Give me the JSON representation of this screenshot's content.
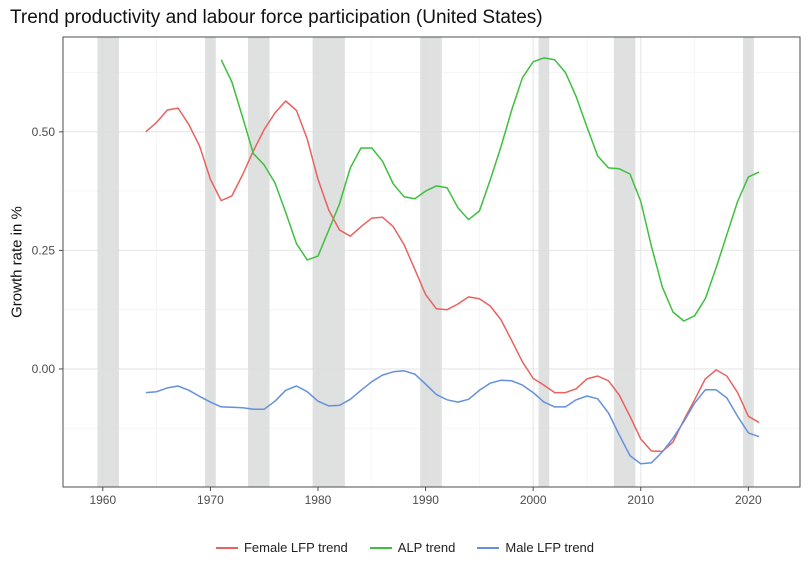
{
  "chart_data": {
    "type": "line",
    "title": "Trend productivity and labour force participation (United States)",
    "xlabel": "",
    "ylabel": "Growth rate in %",
    "xlim": [
      1956.3,
      2024.8
    ],
    "ylim": [
      -0.249,
      0.7
    ],
    "x_ticks": [
      1960,
      1970,
      1980,
      1990,
      2000,
      2010,
      2020
    ],
    "y_ticks": [
      0.0,
      0.25,
      0.5
    ],
    "y_tick_labels": [
      "0.00",
      "0.25",
      "0.50"
    ],
    "grid": true,
    "legend_position": "bottom",
    "shaded_periods": [
      [
        1959.5,
        1961.5
      ],
      [
        1969.5,
        1970.5
      ],
      [
        1973.5,
        1975.5
      ],
      [
        1979.5,
        1982.5
      ],
      [
        1989.5,
        1991.5
      ],
      [
        2000.5,
        2001.5
      ],
      [
        2007.5,
        2009.5
      ],
      [
        2019.5,
        2020.5
      ]
    ],
    "shade_color": "#dcdddd",
    "series": [
      {
        "name": "Female LFP trend",
        "color": "#e8625f",
        "x_start": 1964,
        "values": [
          0.5,
          0.52,
          0.546,
          0.55,
          0.515,
          0.47,
          0.4,
          0.355,
          0.365,
          0.41,
          0.46,
          0.505,
          0.54,
          0.565,
          0.545,
          0.485,
          0.4,
          0.335,
          0.293,
          0.28,
          0.3,
          0.318,
          0.32,
          0.3,
          0.262,
          0.21,
          0.157,
          0.127,
          0.125,
          0.137,
          0.152,
          0.148,
          0.133,
          0.104,
          0.06,
          0.015,
          -0.02,
          -0.034,
          -0.05,
          -0.05,
          -0.042,
          -0.021,
          -0.015,
          -0.025,
          -0.055,
          -0.1,
          -0.148,
          -0.173,
          -0.174,
          -0.154,
          -0.108,
          -0.065,
          -0.021,
          -0.002,
          -0.015,
          -0.05,
          -0.1,
          -0.113
        ]
      },
      {
        "name": "ALP trend",
        "color": "#3fbf3f",
        "x_start": 1971,
        "values": [
          0.652,
          0.605,
          0.53,
          0.454,
          0.43,
          0.392,
          0.33,
          0.264,
          0.23,
          0.238,
          0.293,
          0.348,
          0.424,
          0.466,
          0.466,
          0.438,
          0.39,
          0.363,
          0.359,
          0.375,
          0.386,
          0.382,
          0.34,
          0.315,
          0.333,
          0.398,
          0.468,
          0.546,
          0.614,
          0.648,
          0.656,
          0.652,
          0.625,
          0.574,
          0.51,
          0.449,
          0.424,
          0.422,
          0.411,
          0.353,
          0.258,
          0.173,
          0.12,
          0.101,
          0.112,
          0.148,
          0.213,
          0.283,
          0.353,
          0.405,
          0.415
        ]
      },
      {
        "name": "Male LFP trend",
        "color": "#6490dc",
        "x_start": 1964,
        "values": [
          -0.05,
          -0.048,
          -0.04,
          -0.036,
          -0.045,
          -0.058,
          -0.07,
          -0.08,
          -0.081,
          -0.082,
          -0.085,
          -0.085,
          -0.068,
          -0.045,
          -0.036,
          -0.048,
          -0.068,
          -0.078,
          -0.077,
          -0.064,
          -0.045,
          -0.027,
          -0.013,
          -0.006,
          -0.004,
          -0.011,
          -0.032,
          -0.054,
          -0.065,
          -0.07,
          -0.064,
          -0.045,
          -0.03,
          -0.024,
          -0.025,
          -0.034,
          -0.05,
          -0.07,
          -0.08,
          -0.08,
          -0.065,
          -0.057,
          -0.063,
          -0.093,
          -0.139,
          -0.183,
          -0.2,
          -0.198,
          -0.175,
          -0.146,
          -0.111,
          -0.072,
          -0.044,
          -0.044,
          -0.061,
          -0.1,
          -0.135,
          -0.143
        ]
      }
    ]
  }
}
